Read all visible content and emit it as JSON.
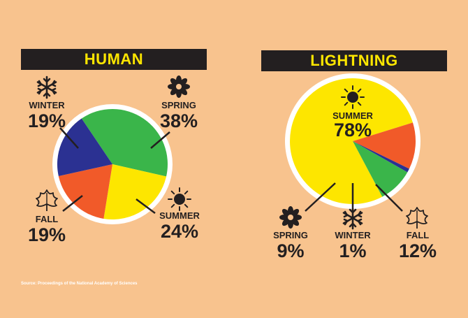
{
  "source": "Source: Proceedings of the National Academy of Sciences",
  "colors": {
    "background": "#F8C38E",
    "banner_bg": "#231F20",
    "banner_text": "#FDE600",
    "winter": "#2B3192",
    "spring": "#3AB54A",
    "summer": "#FDE600",
    "fall": "#F15A29",
    "ink": "#231F20"
  },
  "chart_data": [
    {
      "type": "pie",
      "title": "HUMAN",
      "slices": [
        {
          "label": "SPRING",
          "value": 38,
          "display": "38%",
          "color": "#3AB54A",
          "icon": "flower-icon"
        },
        {
          "label": "SUMMER",
          "value": 24,
          "display": "24%",
          "color": "#FDE600",
          "icon": "sun-icon"
        },
        {
          "label": "FALL",
          "value": 19,
          "display": "19%",
          "color": "#F15A29",
          "icon": "leaf-icon"
        },
        {
          "label": "WINTER",
          "value": 19,
          "display": "19%",
          "color": "#2B3192",
          "icon": "snowflake-icon"
        }
      ]
    },
    {
      "type": "pie",
      "title": "LIGHTNING",
      "slices": [
        {
          "label": "SUMMER",
          "value": 78,
          "display": "78%",
          "color": "#FDE600",
          "icon": "sun-icon"
        },
        {
          "label": "FALL",
          "value": 12,
          "display": "12%",
          "color": "#F15A29",
          "icon": "leaf-icon"
        },
        {
          "label": "WINTER",
          "value": 1,
          "display": "1%",
          "color": "#2B3192",
          "icon": "snowflake-icon"
        },
        {
          "label": "SPRING",
          "value": 9,
          "display": "9%",
          "color": "#3AB54A",
          "icon": "flower-icon"
        }
      ]
    }
  ]
}
